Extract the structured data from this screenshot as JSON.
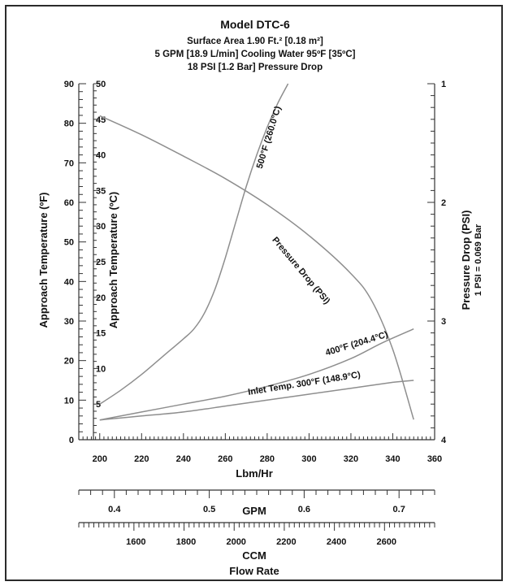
{
  "chart_data": {
    "type": "line",
    "title": "Model DTC-6",
    "subtitle_lines": [
      "Surface Area 1.90 Ft.² [0.18 m²]",
      "5 GPM [18.9 L/min] Cooling Water 95ºF [35ºC]",
      "18 PSI [1.2 Bar] Pressure Drop"
    ],
    "x_axis": {
      "label": "Lbm/Hr",
      "range": [
        190,
        360
      ],
      "ticks": [
        200,
        220,
        240,
        260,
        280,
        300,
        320,
        340,
        360
      ]
    },
    "y_left_f": {
      "label": "Approach Temperature (ºF)",
      "range": [
        0,
        90
      ],
      "ticks": [
        0,
        10,
        20,
        30,
        40,
        50,
        60,
        70,
        80,
        90
      ]
    },
    "y_left_c": {
      "label": "Approach Temperature (ºC)",
      "range_f": [
        0,
        90
      ],
      "ticks": [
        {
          "label": "5",
          "f": 9
        },
        {
          "label": "10",
          "f": 18
        },
        {
          "label": "15",
          "f": 27
        },
        {
          "label": "20",
          "f": 36
        },
        {
          "label": "25",
          "f": 45
        },
        {
          "label": "30",
          "f": 54
        },
        {
          "label": "35",
          "f": 63
        },
        {
          "label": "40",
          "f": 72
        },
        {
          "label": "45",
          "f": 81
        },
        {
          "label": "50",
          "f": 90
        }
      ]
    },
    "y_right": {
      "label": "Pressure Drop (PSI)",
      "sublabel": "1 PSI = 0.069 Bar",
      "range": [
        1,
        4
      ],
      "ticks": [
        1,
        2,
        3,
        4
      ]
    },
    "secondary_x": [
      {
        "label": "GPM",
        "range": [
          0.3625,
          0.7375
        ],
        "ticks": [
          0.4,
          0.5,
          0.6,
          0.7
        ],
        "tick_labels": [
          "0.4",
          "0.5",
          "0.6",
          "0.7"
        ]
      },
      {
        "label": "CCM",
        "range": [
          1372,
          2792
        ],
        "ticks": [
          1600,
          1800,
          2000,
          2200,
          2400,
          2600
        ],
        "tick_labels": [
          "1600",
          "1800",
          "2000",
          "2200",
          "2400",
          "2600"
        ]
      }
    ],
    "bottom_label": "Flow Rate",
    "series": [
      {
        "name": "500°F (260.0°C)",
        "axis": "left",
        "points": [
          [
            200,
            9
          ],
          [
            210,
            12.5
          ],
          [
            220,
            16.5
          ],
          [
            230,
            21
          ],
          [
            240,
            25.5
          ],
          [
            245,
            28
          ],
          [
            250,
            32
          ],
          [
            255,
            38
          ],
          [
            260,
            46
          ],
          [
            265,
            55
          ],
          [
            270,
            64
          ],
          [
            275,
            72
          ],
          [
            280,
            79
          ],
          [
            285,
            85
          ],
          [
            290,
            90
          ]
        ]
      },
      {
        "name": "Pressure Drop (PSI)",
        "axis": "right",
        "points": [
          [
            200,
            1.27
          ],
          [
            220,
            1.43
          ],
          [
            240,
            1.61
          ],
          [
            260,
            1.8
          ],
          [
            280,
            2.02
          ],
          [
            300,
            2.28
          ],
          [
            320,
            2.6
          ],
          [
            330,
            2.83
          ],
          [
            340,
            3.24
          ],
          [
            350,
            3.83
          ]
        ]
      },
      {
        "name": "400°F (204.4°C)",
        "axis": "left",
        "points": [
          [
            200,
            5
          ],
          [
            220,
            7
          ],
          [
            240,
            9
          ],
          [
            260,
            11
          ],
          [
            280,
            13.5
          ],
          [
            300,
            16.5
          ],
          [
            320,
            20.5
          ],
          [
            335,
            24.5
          ],
          [
            350,
            28
          ]
        ]
      },
      {
        "name": "Inlet Temp. 300°F (148.9°C)",
        "axis": "left",
        "points": [
          [
            200,
            5
          ],
          [
            220,
            6
          ],
          [
            240,
            7
          ],
          [
            260,
            8.5
          ],
          [
            280,
            10
          ],
          [
            300,
            11.5
          ],
          [
            320,
            13
          ],
          [
            340,
            14.5
          ],
          [
            350,
            15
          ]
        ]
      }
    ]
  }
}
